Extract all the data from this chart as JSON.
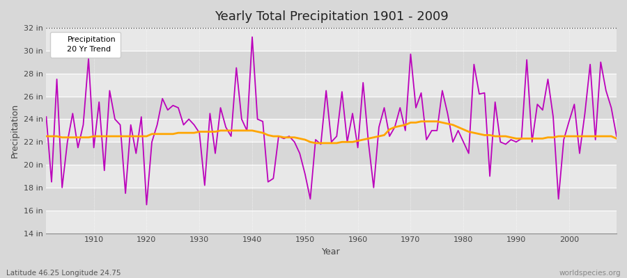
{
  "title": "Yearly Total Precipitation 1901 - 2009",
  "xlabel": "Year",
  "ylabel": "Precipitation",
  "lat_lon_label": "Latitude 46.25 Longitude 24.75",
  "watermark": "worldspecies.org",
  "ylim": [
    14,
    32
  ],
  "yticks": [
    14,
    16,
    18,
    20,
    22,
    24,
    26,
    28,
    30,
    32
  ],
  "ytick_labels": [
    "14 in",
    "16 in",
    "18 in",
    "20 in",
    "22 in",
    "24 in",
    "26 in",
    "28 in",
    "30 in",
    "32 in"
  ],
  "xlim": [
    1901,
    2009
  ],
  "xticks": [
    1910,
    1920,
    1930,
    1940,
    1950,
    1960,
    1970,
    1980,
    1990,
    2000
  ],
  "bg_color": "#d8d8d8",
  "plot_bg_color": "#e0e0e0",
  "band_light": "#e8e8e8",
  "band_dark": "#d8d8d8",
  "precip_color": "#bb00bb",
  "trend_color": "#ffa500",
  "precip_linewidth": 1.3,
  "trend_linewidth": 2.0,
  "years": [
    1901,
    1902,
    1903,
    1904,
    1905,
    1906,
    1907,
    1908,
    1909,
    1910,
    1911,
    1912,
    1913,
    1914,
    1915,
    1916,
    1917,
    1918,
    1919,
    1920,
    1921,
    1922,
    1923,
    1924,
    1925,
    1926,
    1927,
    1928,
    1929,
    1930,
    1931,
    1932,
    1933,
    1934,
    1935,
    1936,
    1937,
    1938,
    1939,
    1940,
    1941,
    1942,
    1943,
    1944,
    1945,
    1946,
    1947,
    1948,
    1949,
    1950,
    1951,
    1952,
    1953,
    1954,
    1955,
    1956,
    1957,
    1958,
    1959,
    1960,
    1961,
    1962,
    1963,
    1964,
    1965,
    1966,
    1967,
    1968,
    1969,
    1970,
    1971,
    1972,
    1973,
    1974,
    1975,
    1976,
    1977,
    1978,
    1979,
    1980,
    1981,
    1982,
    1983,
    1984,
    1985,
    1986,
    1987,
    1988,
    1989,
    1990,
    1991,
    1992,
    1993,
    1994,
    1995,
    1996,
    1997,
    1998,
    1999,
    2000,
    2001,
    2002,
    2003,
    2004,
    2005,
    2006,
    2007,
    2008,
    2009
  ],
  "precipitation": [
    24.2,
    18.5,
    27.5,
    18.0,
    22.0,
    24.5,
    21.5,
    23.5,
    29.3,
    21.5,
    25.5,
    19.5,
    26.5,
    24.0,
    23.5,
    17.5,
    23.5,
    21.0,
    24.2,
    16.5,
    22.0,
    23.5,
    25.8,
    24.8,
    25.2,
    25.0,
    23.5,
    24.0,
    23.5,
    22.8,
    18.2,
    24.5,
    21.0,
    25.0,
    23.3,
    22.5,
    28.5,
    24.0,
    23.0,
    31.2,
    24.0,
    23.8,
    18.5,
    18.8,
    22.5,
    22.3,
    22.5,
    22.0,
    21.0,
    19.2,
    17.0,
    22.2,
    21.8,
    26.5,
    22.0,
    22.5,
    26.4,
    22.0,
    24.5,
    21.5,
    27.2,
    22.0,
    18.0,
    23.3,
    25.0,
    22.5,
    23.3,
    25.0,
    23.0,
    29.7,
    25.0,
    26.3,
    22.2,
    23.0,
    23.0,
    26.5,
    24.5,
    22.0,
    23.0,
    22.0,
    21.0,
    28.8,
    26.2,
    26.3,
    19.0,
    25.5,
    22.0,
    21.8,
    22.2,
    22.0,
    22.3,
    29.2,
    22.0,
    25.3,
    24.8,
    27.5,
    24.2,
    17.0,
    22.2,
    23.8,
    25.3,
    21.0,
    24.5,
    28.8,
    22.2,
    29.0,
    26.5,
    25.0,
    22.5
  ],
  "trend": [
    22.5,
    22.5,
    22.5,
    22.4,
    22.4,
    22.4,
    22.4,
    22.4,
    22.4,
    22.5,
    22.5,
    22.5,
    22.5,
    22.5,
    22.5,
    22.5,
    22.5,
    22.5,
    22.5,
    22.5,
    22.7,
    22.7,
    22.7,
    22.7,
    22.7,
    22.8,
    22.8,
    22.8,
    22.8,
    22.9,
    22.9,
    22.9,
    22.9,
    23.0,
    23.0,
    23.0,
    23.0,
    23.0,
    23.0,
    23.0,
    22.9,
    22.8,
    22.6,
    22.5,
    22.5,
    22.4,
    22.4,
    22.4,
    22.3,
    22.2,
    22.0,
    21.9,
    21.9,
    21.9,
    21.9,
    21.9,
    22.0,
    22.0,
    22.0,
    22.1,
    22.2,
    22.3,
    22.4,
    22.5,
    22.6,
    23.1,
    23.3,
    23.4,
    23.5,
    23.7,
    23.7,
    23.8,
    23.8,
    23.8,
    23.8,
    23.7,
    23.6,
    23.5,
    23.3,
    23.1,
    22.9,
    22.8,
    22.7,
    22.6,
    22.6,
    22.5,
    22.5,
    22.5,
    22.4,
    22.3,
    22.3,
    22.3,
    22.3,
    22.3,
    22.3,
    22.4,
    22.4,
    22.5,
    22.5,
    22.5,
    22.5,
    22.5,
    22.5,
    22.5,
    22.5,
    22.5,
    22.5,
    22.5,
    22.3
  ]
}
